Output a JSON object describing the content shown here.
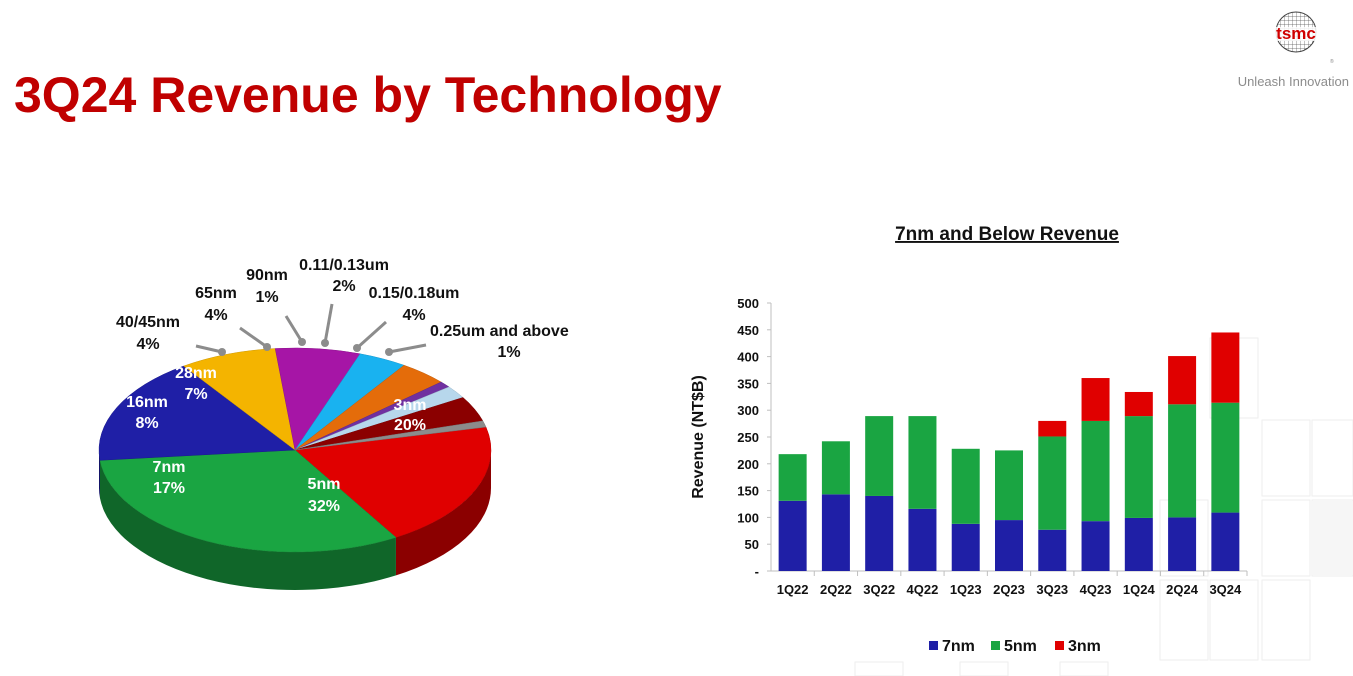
{
  "page": {
    "title": "3Q24 Revenue by Technology",
    "logo_text": "tsmc",
    "tagline": "Unleash Innovation"
  },
  "chart_data": [
    {
      "type": "pie",
      "style": "3d-exploded",
      "slices": [
        {
          "label": "3nm",
          "pct_label": "20%",
          "value": 20,
          "color": "#e00000"
        },
        {
          "label": "5nm",
          "pct_label": "32%",
          "value": 32,
          "color": "#1aa542"
        },
        {
          "label": "7nm",
          "pct_label": "17%",
          "value": 17,
          "color": "#1f1fa6"
        },
        {
          "label": "16nm",
          "pct_label": "8%",
          "value": 8,
          "color": "#f4b400"
        },
        {
          "label": "28nm",
          "pct_label": "7%",
          "value": 7,
          "color": "#a615a6"
        },
        {
          "label": "40/45nm",
          "pct_label": "4%",
          "value": 4,
          "color": "#19b2f0"
        },
        {
          "label": "65nm",
          "pct_label": "4%",
          "value": 4,
          "color": "#e46c0a"
        },
        {
          "label": "90nm",
          "pct_label": "1%",
          "value": 1,
          "color": "#7030a0"
        },
        {
          "label": "0.11/0.13um",
          "pct_label": "2%",
          "value": 2,
          "color": "#b7d7ec"
        },
        {
          "label": "0.15/0.18um",
          "pct_label": "4%",
          "value": 4,
          "color": "#8b0000"
        },
        {
          "label": "0.25um and above",
          "pct_label": "1%",
          "value": 1,
          "color": "#8c8c8c"
        }
      ]
    },
    {
      "type": "bar",
      "stacked": true,
      "title": "7nm and Below Revenue",
      "ylabel": "Revenue (NT$B)",
      "ylim": [
        0,
        500
      ],
      "yticks": [
        0,
        50,
        100,
        150,
        200,
        250,
        300,
        350,
        400,
        450,
        500
      ],
      "ytick_labels": [
        "-",
        "50",
        "100",
        "150",
        "200",
        "250",
        "300",
        "350",
        "400",
        "450",
        "500"
      ],
      "categories": [
        "1Q22",
        "2Q22",
        "3Q22",
        "4Q22",
        "1Q23",
        "2Q23",
        "3Q23",
        "4Q23",
        "1Q24",
        "2Q24",
        "3Q24"
      ],
      "series": [
        {
          "name": "7nm",
          "color": "#1f1fa6",
          "values": [
            131,
            143,
            140,
            116,
            88,
            95,
            77,
            93,
            99,
            100,
            109
          ]
        },
        {
          "name": "5nm",
          "color": "#1aa542",
          "values": [
            87,
            99,
            149,
            173,
            140,
            130,
            174,
            187,
            190,
            211,
            205
          ]
        },
        {
          "name": "3nm",
          "color": "#e00000",
          "values": [
            0,
            0,
            0,
            0,
            0,
            0,
            29,
            80,
            45,
            90,
            131
          ]
        }
      ],
      "legend_position": "bottom"
    }
  ]
}
